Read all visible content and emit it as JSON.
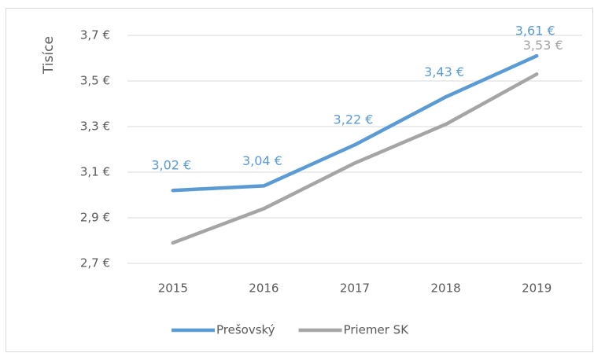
{
  "chart_data": {
    "type": "line",
    "y_axis_label": "Tisíce",
    "categories": [
      "2015",
      "2016",
      "2017",
      "2018",
      "2019"
    ],
    "series": [
      {
        "name": "Prešovský",
        "color": "#5b9bd5",
        "values": [
          3.02,
          3.04,
          3.22,
          3.43,
          3.61
        ],
        "value_labels": [
          "3,02 €",
          "3,04 €",
          "3,22 €",
          "3,43 €",
          "3,61 €"
        ]
      },
      {
        "name": "Priemer SK",
        "color": "#a5a5a5",
        "values": [
          2.79,
          2.94,
          3.14,
          3.31,
          3.53
        ],
        "value_labels": [
          null,
          null,
          null,
          null,
          "3,53 €"
        ]
      }
    ],
    "ylim": [
      2.7,
      3.7
    ],
    "yticks": [
      {
        "value": 2.7,
        "label": "2,7 €"
      },
      {
        "value": 2.9,
        "label": "2,9 €"
      },
      {
        "value": 3.1,
        "label": "3,1 €"
      },
      {
        "value": 3.3,
        "label": "3,3 €"
      },
      {
        "value": 3.5,
        "label": "3,5 €"
      },
      {
        "value": 3.7,
        "label": "3,7 €"
      }
    ],
    "grid": true,
    "legend": "bottom"
  }
}
